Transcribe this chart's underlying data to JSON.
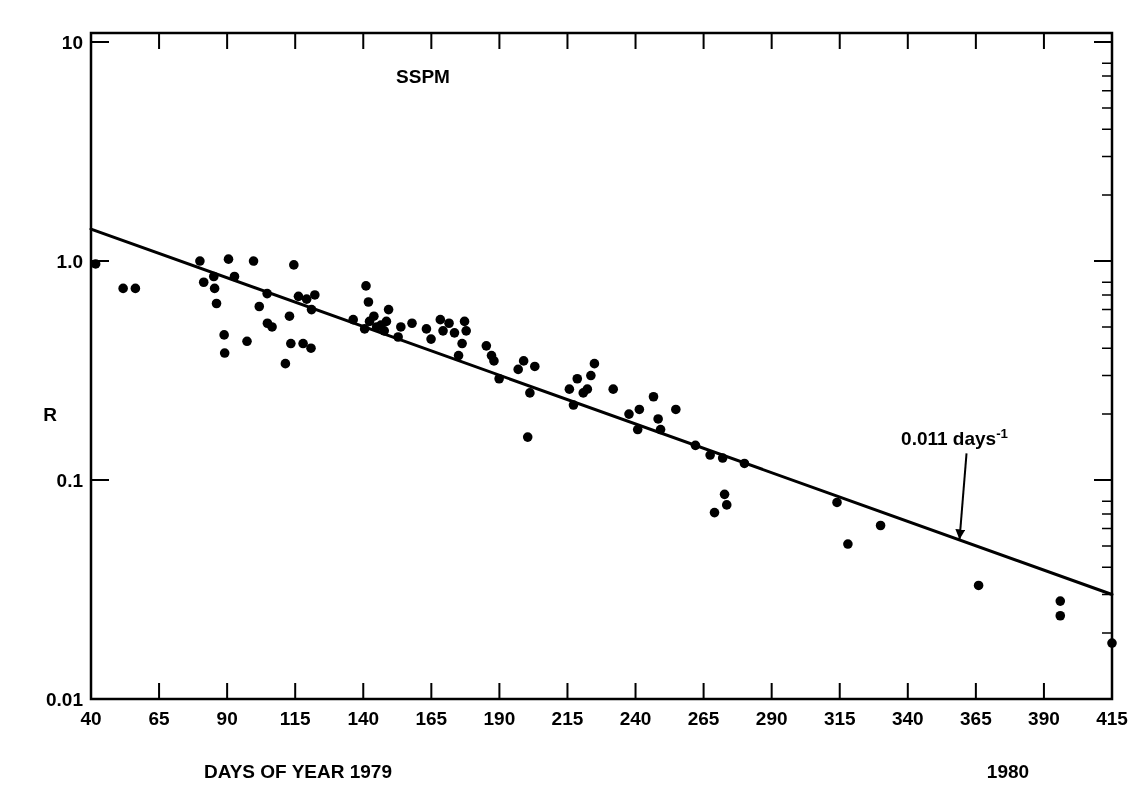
{
  "chart_data": {
    "type": "scatter",
    "xlabel": "DAYS OF YEAR  1979",
    "ylabel": "R",
    "log": "y",
    "grid": false,
    "xlim": [
      40,
      415
    ],
    "xticks": [
      40,
      65,
      90,
      115,
      140,
      165,
      190,
      215,
      240,
      265,
      290,
      315,
      340,
      365,
      390,
      415
    ],
    "ylim": [
      0.01,
      11
    ],
    "yticks": [
      0.01,
      {
        "value": 0.1,
        "label": "0.1"
      },
      {
        "value": 1,
        "label": "1.0"
      },
      10
    ],
    "annotations": [
      "SSPM",
      "1980",
      {
        "text": "0.011 days$^{-1}$",
        "x": 359,
        "y": 0.053
      }
    ],
    "series": [
      {
        "color": "#000000",
        "marker": "circle",
        "x": [
          41.7,
          51.8,
          56.3,
          80.0,
          81.4,
          85.1,
          85.4,
          86.1,
          88.9,
          89.1,
          90.5,
          92.7,
          97.3,
          99.7,
          101.8,
          104.7,
          104.8,
          106.5,
          111.4,
          112.9,
          113.4,
          114.5,
          116.2,
          117.9,
          119.2,
          120.8,
          121.0,
          122.2,
          136.3,
          140.5,
          141.0,
          141.9,
          142.3,
          143.9,
          144.9,
          146.5,
          147.7,
          148.5,
          149.3,
          152.8,
          153.8,
          157.9,
          163.2,
          164.9,
          168.3,
          169.3,
          171.5,
          173.5,
          175.0,
          176.3,
          177.2,
          177.8,
          185.2,
          187.1,
          188.0,
          189.9,
          196.9,
          198.9,
          200.4,
          201.2,
          203.0,
          215.7,
          217.2,
          218.6,
          220.8,
          222.3,
          223.6,
          224.9,
          231.8,
          237.6,
          240.8,
          241.4,
          246.6,
          248.3,
          249.2,
          254.8,
          262,
          267.4,
          269,
          272,
          272.7,
          273.5,
          280,
          314,
          318,
          330,
          366,
          396,
          396,
          415
        ],
        "values": [
          0.97,
          0.75,
          0.75,
          1.0,
          0.8,
          0.85,
          0.75,
          0.64,
          0.46,
          0.38,
          1.02,
          0.85,
          0.43,
          1.0,
          0.62,
          0.71,
          0.52,
          0.5,
          0.34,
          0.56,
          0.42,
          0.96,
          0.69,
          0.42,
          0.67,
          0.4,
          0.6,
          0.7,
          0.54,
          0.49,
          0.77,
          0.65,
          0.53,
          0.56,
          0.5,
          0.51,
          0.48,
          0.53,
          0.6,
          0.45,
          0.5,
          0.52,
          0.49,
          0.44,
          0.54,
          0.48,
          0.52,
          0.47,
          0.37,
          0.42,
          0.53,
          0.48,
          0.41,
          0.37,
          0.35,
          0.29,
          0.32,
          0.35,
          0.157,
          0.25,
          0.33,
          0.26,
          0.22,
          0.29,
          0.25,
          0.26,
          0.3,
          0.34,
          0.26,
          0.2,
          0.17,
          0.21,
          0.24,
          0.19,
          0.17,
          0.21,
          0.144,
          0.13,
          0.071,
          0.126,
          0.086,
          0.077,
          0.119,
          0.079,
          0.051,
          0.062,
          0.033,
          0.028,
          0.024,
          0.018
        ]
      },
      {
        "type": "line",
        "color": "#000000",
        "marker": "none",
        "x": [
          40,
          415
        ],
        "values": [
          1.4,
          0.03
        ]
      }
    ]
  }
}
